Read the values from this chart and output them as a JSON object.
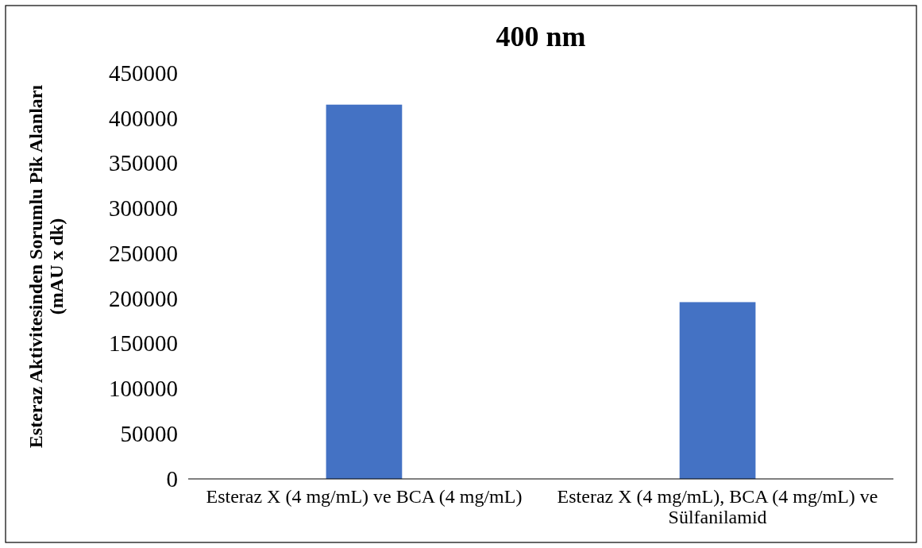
{
  "chart_data": {
    "type": "bar",
    "title": "400 nm",
    "ylabel": "Esteraz Aktivitesinden Sorumlu Pik Alanları (mAU x dk)",
    "categories": [
      "Esteraz X (4 mg/mL) ve BCA (4 mg/mL)",
      "Esteraz X (4 mg/mL), BCA (4 mg/mL) ve Sülfanilamid"
    ],
    "values": [
      415000,
      196000
    ],
    "color": "#4472c4",
    "ylim": [
      0,
      450000
    ],
    "yticks": [
      0,
      50000,
      100000,
      150000,
      200000,
      250000,
      300000,
      350000,
      400000,
      450000
    ],
    "grid": false
  }
}
